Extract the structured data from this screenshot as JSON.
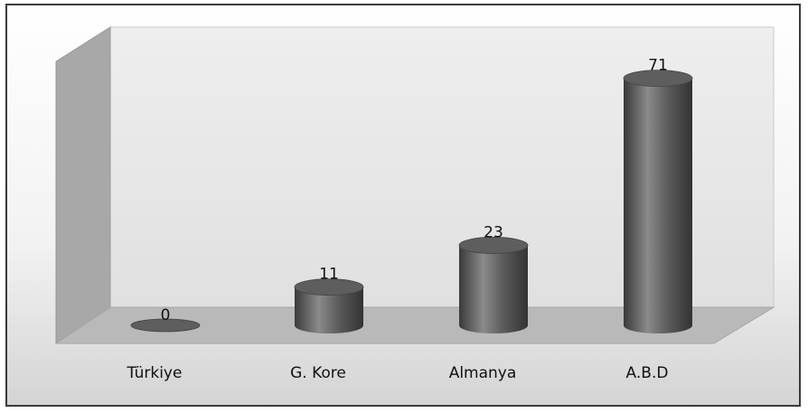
{
  "chart_data": {
    "type": "bar",
    "style": "3d-cylinder",
    "categories": [
      "Türkiye",
      "G. Kore",
      "Almanya",
      "A.B.D"
    ],
    "values": [
      0,
      11,
      23,
      71
    ],
    "data_labels": [
      "0",
      "11",
      "23",
      "71"
    ],
    "title": "",
    "xlabel": "",
    "ylabel": "",
    "ylim": [
      0,
      80
    ],
    "grid": false,
    "legend": "none",
    "colors": {
      "bar": "#505050",
      "bar_highlight": "#8a8a8a",
      "bar_top": "#5e5e5e",
      "back_wall": "#e6e6e6",
      "side_wall": "#a8a8a8",
      "floor": "#b9b9b9"
    }
  }
}
